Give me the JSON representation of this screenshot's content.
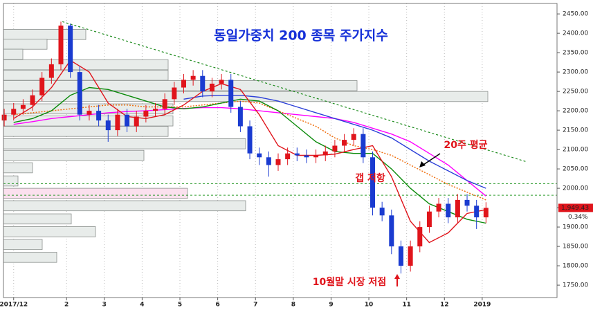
{
  "chart_data": {
    "type": "candlestick",
    "title": "동일가중치 200 종목 주가지수",
    "xlim": [
      0.33,
      14.98
    ],
    "ylim": [
      1718,
      2477
    ],
    "grid": true,
    "xticks": [
      {
        "value": 0.6,
        "label": "2017/12"
      },
      2,
      3,
      4,
      5,
      6,
      7,
      8,
      9,
      10,
      11,
      12,
      {
        "value": 13,
        "label": "2019"
      }
    ],
    "yticks": [
      {
        "value": 1750,
        "label": "1750.00"
      },
      {
        "value": 1800,
        "label": "1800.00"
      },
      {
        "value": 1850,
        "label": "1850.00"
      },
      {
        "value": 1900,
        "label": "1900.00"
      },
      {
        "value": 1950,
        "label": "1950.00"
      },
      {
        "value": 2000,
        "label": "2000.00"
      },
      {
        "value": 2050,
        "label": "2050.00"
      },
      {
        "value": 2100,
        "label": "2100.00"
      },
      {
        "value": 2150,
        "label": "2150.00"
      },
      {
        "value": 2200,
        "label": "2200.00"
      },
      {
        "value": 2250,
        "label": "2250.00"
      },
      {
        "value": 2300,
        "label": "2300.00"
      },
      {
        "value": 2350,
        "label": "2350.00"
      },
      {
        "value": 2400,
        "label": "2400.00"
      },
      {
        "value": 2450,
        "label": "2450.00"
      }
    ],
    "up_color": "#e0141b",
    "down_color": "#1a3bd0",
    "x": [
      0.35,
      0.6,
      0.85,
      1.1,
      1.35,
      1.6,
      1.85,
      2.1,
      2.35,
      2.6,
      2.85,
      3.1,
      3.35,
      3.6,
      3.85,
      4.1,
      4.35,
      4.6,
      4.85,
      5.1,
      5.35,
      5.6,
      5.85,
      6.1,
      6.35,
      6.6,
      6.85,
      7.1,
      7.35,
      7.6,
      7.85,
      8.1,
      8.35,
      8.6,
      8.85,
      9.1,
      9.35,
      9.6,
      9.85,
      10.1,
      10.35,
      10.6,
      10.85,
      11.1,
      11.35,
      11.6,
      11.85,
      12.1,
      12.35,
      12.6,
      12.85,
      13.1
    ],
    "open": [
      2175,
      2190,
      2205,
      2215,
      2240,
      2285,
      2320,
      2420,
      2300,
      2190,
      2200,
      2175,
      2150,
      2190,
      2160,
      2185,
      2200,
      2205,
      2230,
      2260,
      2280,
      2290,
      2250,
      2270,
      2280,
      2210,
      2160,
      2090,
      2080,
      2060,
      2075,
      2090,
      2085,
      2080,
      2085,
      2095,
      2110,
      2125,
      2140,
      2080,
      1950,
      1930,
      1850,
      1800,
      1850,
      1900,
      1940,
      1960,
      1925,
      1970,
      1955,
      1925
    ],
    "high": [
      2205,
      2220,
      2230,
      2255,
      2300,
      2335,
      2430,
      2425,
      2315,
      2215,
      2215,
      2190,
      2205,
      2205,
      2200,
      2215,
      2220,
      2245,
      2275,
      2295,
      2305,
      2305,
      2285,
      2295,
      2295,
      2225,
      2175,
      2105,
      2095,
      2090,
      2105,
      2105,
      2100,
      2100,
      2110,
      2125,
      2140,
      2155,
      2155,
      2095,
      1965,
      1945,
      1865,
      1865,
      1915,
      1955,
      1975,
      1975,
      1985,
      1985,
      1970,
      1964
    ],
    "low": [
      2160,
      2175,
      2190,
      2200,
      2225,
      2270,
      2305,
      2285,
      2175,
      2175,
      2160,
      2120,
      2135,
      2145,
      2145,
      2170,
      2185,
      2190,
      2215,
      2245,
      2265,
      2235,
      2235,
      2255,
      2195,
      2145,
      2075,
      2060,
      2030,
      2045,
      2060,
      2070,
      2065,
      2065,
      2070,
      2080,
      2095,
      2110,
      2065,
      1930,
      1915,
      1830,
      1780,
      1785,
      1835,
      1885,
      1925,
      1910,
      1910,
      1940,
      1895,
      1910
    ],
    "close": [
      2190,
      2205,
      2215,
      2240,
      2285,
      2320,
      2420,
      2300,
      2190,
      2200,
      2175,
      2150,
      2190,
      2160,
      2185,
      2200,
      2205,
      2230,
      2260,
      2280,
      2290,
      2250,
      2270,
      2280,
      2210,
      2160,
      2090,
      2080,
      2060,
      2075,
      2090,
      2085,
      2080,
      2085,
      2095,
      2110,
      2125,
      2140,
      2080,
      1950,
      1930,
      1850,
      1800,
      1850,
      1900,
      1940,
      1960,
      1925,
      1970,
      1955,
      1925,
      1949.43
    ],
    "ma_x": [
      0.6,
      1.1,
      1.6,
      2.1,
      2.6,
      3.1,
      3.6,
      4.1,
      4.6,
      5.1,
      5.6,
      6.1,
      6.6,
      7.1,
      7.6,
      8.1,
      8.6,
      9.1,
      9.6,
      10.1,
      10.6,
      11.1,
      11.6,
      12.1,
      12.6,
      13.1
    ],
    "moving_averages": [
      {
        "color": "#ff00ff",
        "values": [
          2165,
          2172,
          2180,
          2185,
          2190,
          2195,
          2198,
          2200,
          2203,
          2206,
          2208,
          2208,
          2205,
          2200,
          2195,
          2190,
          2185,
          2180,
          2170,
          2155,
          2140,
          2120,
          2090,
          2060,
          2020,
          1980
        ]
      },
      {
        "color": "#2b3fd8",
        "values": [
          null,
          null,
          null,
          null,
          null,
          null,
          null,
          null,
          null,
          2230,
          2238,
          2240,
          2240,
          2235,
          2225,
          2210,
          2195,
          2180,
          2165,
          2150,
          2130,
          2100,
          2070,
          2045,
          2020,
          2000
        ]
      },
      {
        "color": "#f07010",
        "dash": true,
        "values": [
          2190,
          2195,
          2200,
          2205,
          2210,
          2215,
          2215,
          2210,
          2210,
          2210,
          2215,
          2220,
          2225,
          2220,
          2200,
          2180,
          2160,
          2130,
          2110,
          2100,
          2085,
          2060,
          2035,
          2010,
          1990,
          1970
        ]
      },
      {
        "color": "#0a8a0a",
        "values": [
          2170,
          2180,
          2200,
          2240,
          2260,
          2255,
          2240,
          2225,
          2210,
          2205,
          2210,
          2220,
          2230,
          2225,
          2200,
          2160,
          2120,
          2095,
          2090,
          2090,
          2050,
          2000,
          1960,
          1940,
          1920,
          1910
        ]
      },
      {
        "color": "#e0141b",
        "values": [
          2180,
          2210,
          2260,
          2330,
          2300,
          2220,
          2185,
          2180,
          2190,
          2215,
          2250,
          2270,
          2255,
          2190,
          2110,
          2085,
          2085,
          2088,
          2100,
          2110,
          2030,
          1915,
          1860,
          1885,
          1935,
          1945
        ]
      }
    ],
    "volume_profile": {
      "band": 28,
      "highlight": 14,
      "prices": [
        2396,
        2371,
        2345,
        2318,
        2291,
        2264,
        2236,
        2204,
        2173,
        2146,
        2114,
        2084,
        2052,
        2018,
        1986,
        1954,
        1920,
        1887,
        1854,
        1821
      ],
      "volumes": [
        17,
        9,
        4,
        34,
        34,
        73,
        100,
        35,
        35,
        34,
        50,
        29,
        6,
        3,
        38,
        50,
        14,
        19,
        8,
        11
      ]
    },
    "trendline": {
      "color": "#1a8a1a",
      "x": [
        1.89,
        14.19
      ],
      "y": [
        2430,
        2068
      ]
    },
    "hlines": [
      2012,
      1982
    ],
    "last_price": {
      "value": 1949.43,
      "label": "1,949.43"
    },
    "last_change": {
      "value": 0.34,
      "label": "0.34%"
    },
    "annotations": [
      "20주 평균",
      "갭 저항",
      "10월말 시장 저점"
    ]
  }
}
